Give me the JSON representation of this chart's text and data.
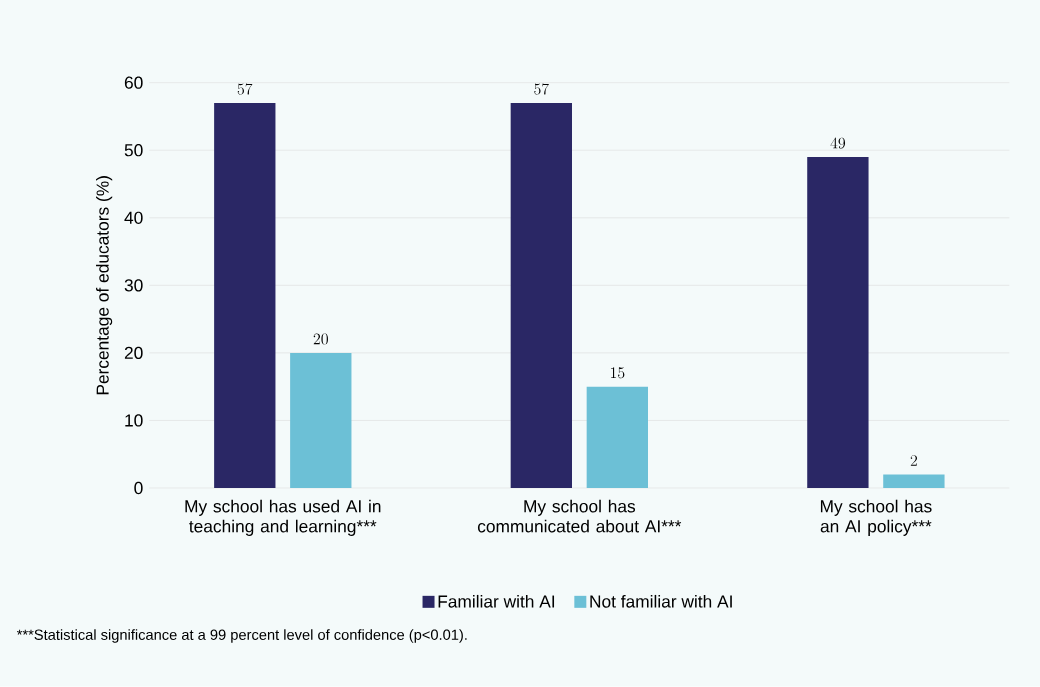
{
  "chart_data": {
    "type": "bar",
    "categories": [
      "My school has used AI in teaching and learning***",
      "My school has communicated about AI***",
      "My school has an AI policy***"
    ],
    "series": [
      {
        "name": "Familiar with AI",
        "color": "#2a2765",
        "values": [
          57,
          57,
          49
        ]
      },
      {
        "name": "Not familiar with AI",
        "color": "#6cc0d6",
        "values": [
          20,
          15,
          2
        ]
      }
    ],
    "ylabel": "Percentage of educators (%)",
    "ylim": [
      0,
      60
    ],
    "yticks": [
      0,
      10,
      20,
      30,
      40,
      50,
      60
    ],
    "grid": "y",
    "legend": "bottom",
    "data_labels": true,
    "annotations": [
      "***Statistical significance at a 99 percent level of confidence (p<0.01)."
    ]
  }
}
